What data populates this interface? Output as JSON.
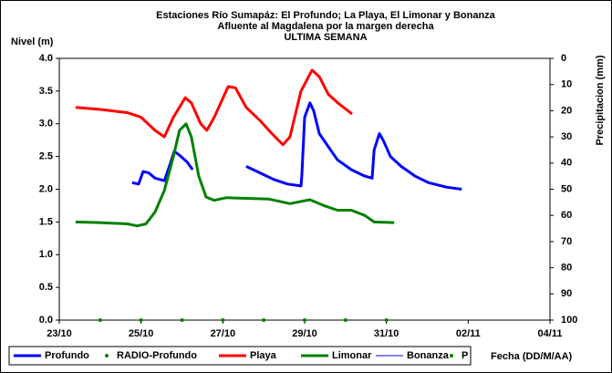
{
  "chart_data": {
    "type": "line",
    "title": [
      "Estaciones Río Sumapáz: El Profundo; La Playa, El Limonar y Bonanza",
      "Afluente al Magdalena por la margen derecha",
      "ULTIMA SEMANA"
    ],
    "ylabel": "Nivel (m)",
    "y2label": "Precipitacion (mm)",
    "xlabel": "Fecha (DD/M/AA)",
    "xlim": [
      0,
      12
    ],
    "xticks": [
      {
        "value": 0,
        "label": "23/10"
      },
      {
        "value": 2,
        "label": "25/10"
      },
      {
        "value": 4,
        "label": "27/10"
      },
      {
        "value": 6,
        "label": "29/10"
      },
      {
        "value": 8,
        "label": "31/10"
      },
      {
        "value": 10,
        "label": "02/11"
      },
      {
        "value": 12,
        "label": "04/11"
      }
    ],
    "ylim": [
      0,
      4
    ],
    "yticks": [
      {
        "value": 0,
        "label": "0.0"
      },
      0.5,
      {
        "value": 1,
        "label": "1.0"
      },
      1.5,
      {
        "value": 2,
        "label": "2.0"
      },
      2.5,
      {
        "value": 3,
        "label": "3.0"
      },
      3.5,
      {
        "value": 4,
        "label": "4.0"
      }
    ],
    "y2lim": [
      100,
      0
    ],
    "y2ticks": [
      0,
      10,
      20,
      30,
      40,
      50,
      60,
      70,
      80,
      90,
      100
    ],
    "series": [
      {
        "name": "Profundo",
        "color": "#0000ff",
        "style": "line",
        "width": 3,
        "x": [
          1.78,
          1.94,
          2.05,
          2.19,
          2.34,
          2.57,
          2.72,
          2.81,
          2.94,
          3.12,
          3.26,
          4.0,
          4.57,
          4.91,
          5.24,
          5.58,
          5.91,
          5.93,
          6.0,
          6.13,
          6.22,
          6.36,
          6.58,
          6.8,
          7.14,
          7.47,
          7.65,
          7.7,
          7.83,
          7.92,
          8.1,
          8.36,
          8.7,
          9.03,
          9.48,
          9.84
        ],
        "values": [
          2.1,
          2.08,
          2.27,
          2.25,
          2.17,
          2.13,
          2.4,
          2.58,
          2.52,
          2.42,
          2.3,
          null,
          2.35,
          2.25,
          2.15,
          2.08,
          2.05,
          2.2,
          3.1,
          3.32,
          3.2,
          2.85,
          2.65,
          2.45,
          2.3,
          2.2,
          2.17,
          2.6,
          2.85,
          2.75,
          2.5,
          2.35,
          2.2,
          2.1,
          2.03,
          2.0
        ]
      },
      {
        "name": "RADIO-Profundo",
        "color": "#008000",
        "style": "marker",
        "x": [],
        "values": []
      },
      {
        "name": "Playa",
        "color": "#ff0000",
        "style": "line",
        "width": 3,
        "x": [
          0.4,
          1.0,
          1.67,
          2.0,
          2.34,
          2.57,
          2.79,
          3.08,
          3.23,
          3.46,
          3.61,
          3.79,
          4.13,
          4.31,
          4.57,
          4.91,
          5.2,
          5.47,
          5.64,
          5.91,
          6.18,
          6.36,
          6.58,
          6.85,
          7.16
        ],
        "values": [
          3.25,
          3.22,
          3.17,
          3.1,
          2.9,
          2.8,
          3.1,
          3.4,
          3.32,
          3.0,
          2.9,
          3.1,
          3.57,
          3.55,
          3.25,
          3.05,
          2.85,
          2.68,
          2.8,
          3.5,
          3.82,
          3.72,
          3.45,
          3.3,
          3.15
        ]
      },
      {
        "name": "Limonar",
        "color": "#008000",
        "style": "line",
        "width": 3,
        "x": [
          0.4,
          1.0,
          1.67,
          1.9,
          2.12,
          2.34,
          2.57,
          2.79,
          2.94,
          3.1,
          3.23,
          3.41,
          3.59,
          3.79,
          4.08,
          4.57,
          5.13,
          5.64,
          6.13,
          6.47,
          6.8,
          7.14,
          7.47,
          7.7,
          8.19
        ],
        "values": [
          1.5,
          1.49,
          1.47,
          1.44,
          1.47,
          1.65,
          1.98,
          2.5,
          2.9,
          3.0,
          2.8,
          2.2,
          1.88,
          1.83,
          1.87,
          1.86,
          1.85,
          1.78,
          1.84,
          1.75,
          1.68,
          1.68,
          1.6,
          1.5,
          1.49
        ]
      },
      {
        "name": "Bonanza",
        "color": "#0000ff",
        "style": "line",
        "width": 1,
        "x": [],
        "values": []
      },
      {
        "name": "P",
        "color": "#008000",
        "style": "marker",
        "x": [
          1,
          2,
          3,
          4,
          5,
          6,
          7,
          8
        ],
        "values": [
          0,
          0,
          0,
          0,
          0,
          0,
          0,
          0
        ]
      }
    ]
  }
}
